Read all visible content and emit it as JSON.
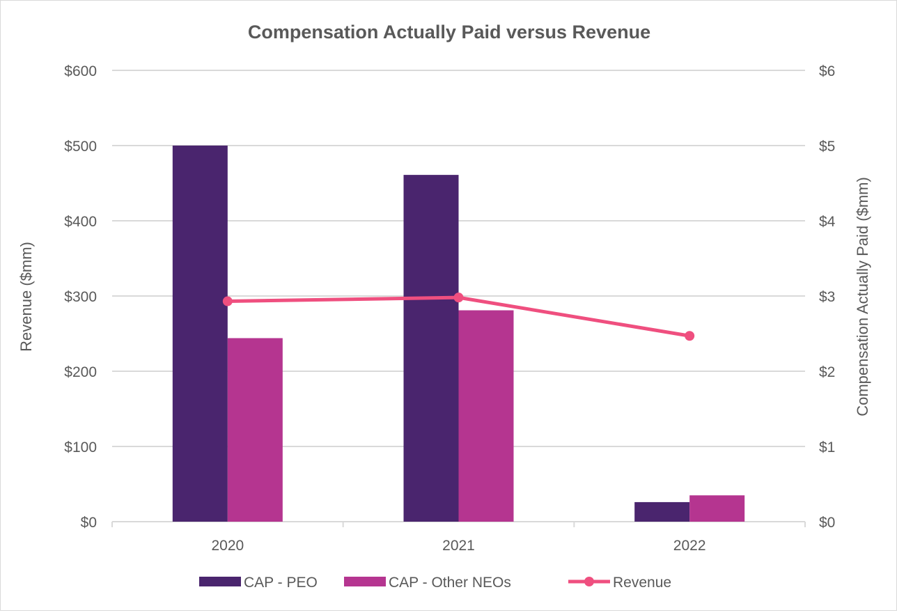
{
  "chart_data": {
    "type": "bar+line",
    "title": "Compensation Actually Paid versus Revenue",
    "categories": [
      "2020",
      "2021",
      "2022"
    ],
    "left_axis": {
      "label": "Revenue ($mm)",
      "range": [
        0,
        600
      ],
      "ticks": [
        "$0",
        "$100",
        "$200",
        "$300",
        "$400",
        "$500",
        "$600"
      ]
    },
    "right_axis": {
      "label": "Compensation Actually Paid ($mm)",
      "range": [
        0,
        6
      ],
      "ticks": [
        "$0",
        "$1",
        "$2",
        "$3",
        "$4",
        "$5",
        "$6"
      ]
    },
    "grid": true,
    "legend_position": "bottom",
    "series": [
      {
        "name": "CAP - PEO",
        "type": "bar",
        "axis": "right",
        "color": "#4a256e",
        "values": [
          5.0,
          4.61,
          0.26
        ]
      },
      {
        "name": "CAP - Other NEOs",
        "type": "bar",
        "axis": "right",
        "color": "#b53590",
        "values": [
          2.44,
          2.81,
          0.35
        ]
      },
      {
        "name": "Revenue",
        "type": "line",
        "axis": "left",
        "color": "#ef4f7f",
        "values": [
          293,
          298,
          247
        ]
      }
    ]
  }
}
